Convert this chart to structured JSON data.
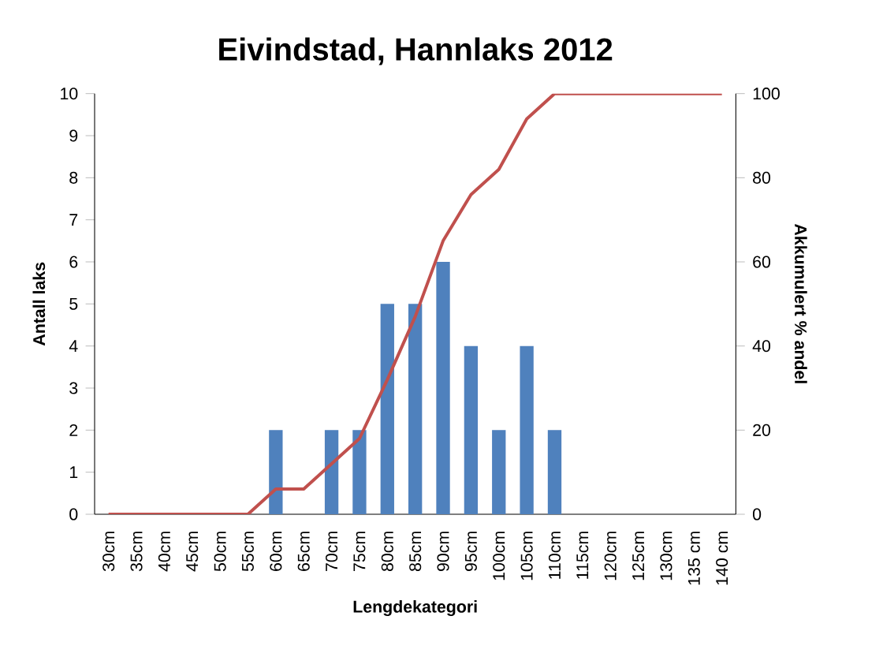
{
  "chart_data": {
    "type": "bar",
    "title": "Eivindstad, Hannlaks 2012",
    "xlabel": "Lengdekategori",
    "ylabel": "Antall laks",
    "y2label": "Akkumulert % andel",
    "categories": [
      "30cm",
      "35cm",
      "40cm",
      "45cm",
      "50cm",
      "55cm",
      "60cm",
      "65cm",
      "70cm",
      "75cm",
      "80cm",
      "85cm",
      "90cm",
      "95cm",
      "100cm",
      "105cm",
      "110cm",
      "115cm",
      "120cm",
      "125cm",
      "130cm",
      "135 cm",
      "140 cm"
    ],
    "series": [
      {
        "color": "#4f81bd",
        "values": [
          0,
          0,
          0,
          0,
          0,
          0,
          2,
          0,
          2,
          2,
          5,
          5,
          6,
          4,
          2,
          4,
          2,
          0,
          0,
          0,
          0,
          0,
          0
        ]
      },
      {
        "type": "line",
        "axis": "y2",
        "color": "#c0504d",
        "values": [
          0,
          0,
          0,
          0,
          0,
          0,
          6,
          6,
          12,
          18,
          32,
          47,
          65,
          76,
          82,
          94,
          100,
          100,
          100,
          100,
          100,
          100,
          100
        ]
      }
    ],
    "ylim": [
      0,
      10
    ],
    "yticks": [
      0,
      1,
      2,
      3,
      4,
      5,
      6,
      7,
      8,
      9,
      10
    ],
    "y2lim": [
      0,
      100
    ],
    "y2ticks": [
      0,
      20,
      40,
      60,
      80,
      100
    ]
  }
}
